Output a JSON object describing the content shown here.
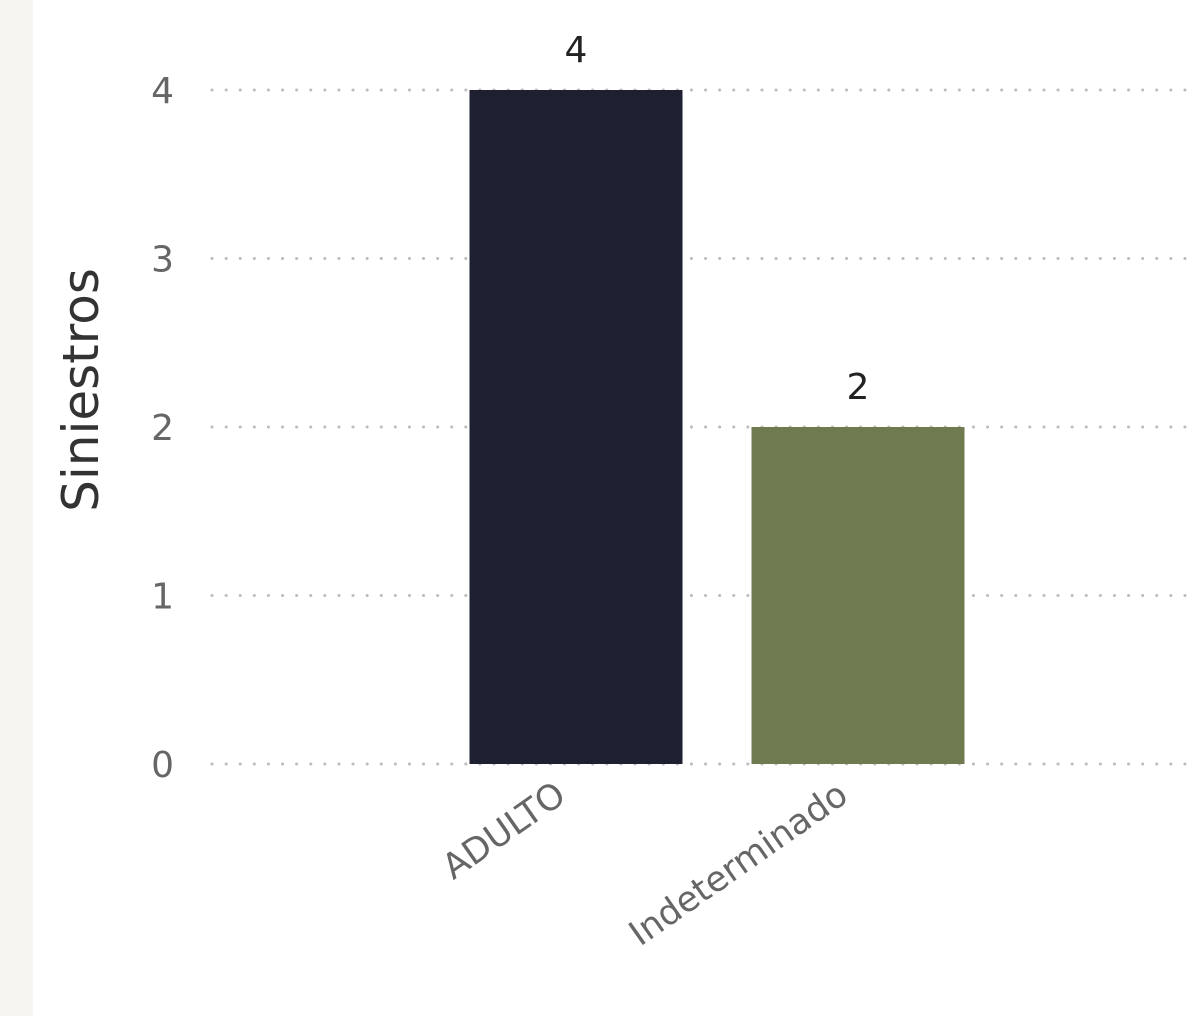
{
  "chart_data": {
    "type": "bar",
    "title": "",
    "xlabel": "",
    "ylabel": "Siniestros",
    "categories": [
      "ADULTO",
      "Indeterminado"
    ],
    "values": [
      4,
      2
    ],
    "colors": [
      "#1e1f30",
      "#6f7a50"
    ],
    "ylim": [
      0,
      4
    ],
    "yticks": [
      0,
      1,
      2,
      3,
      4
    ],
    "grid": "horizontal-dotted",
    "data_labels": true,
    "legend": "none"
  }
}
